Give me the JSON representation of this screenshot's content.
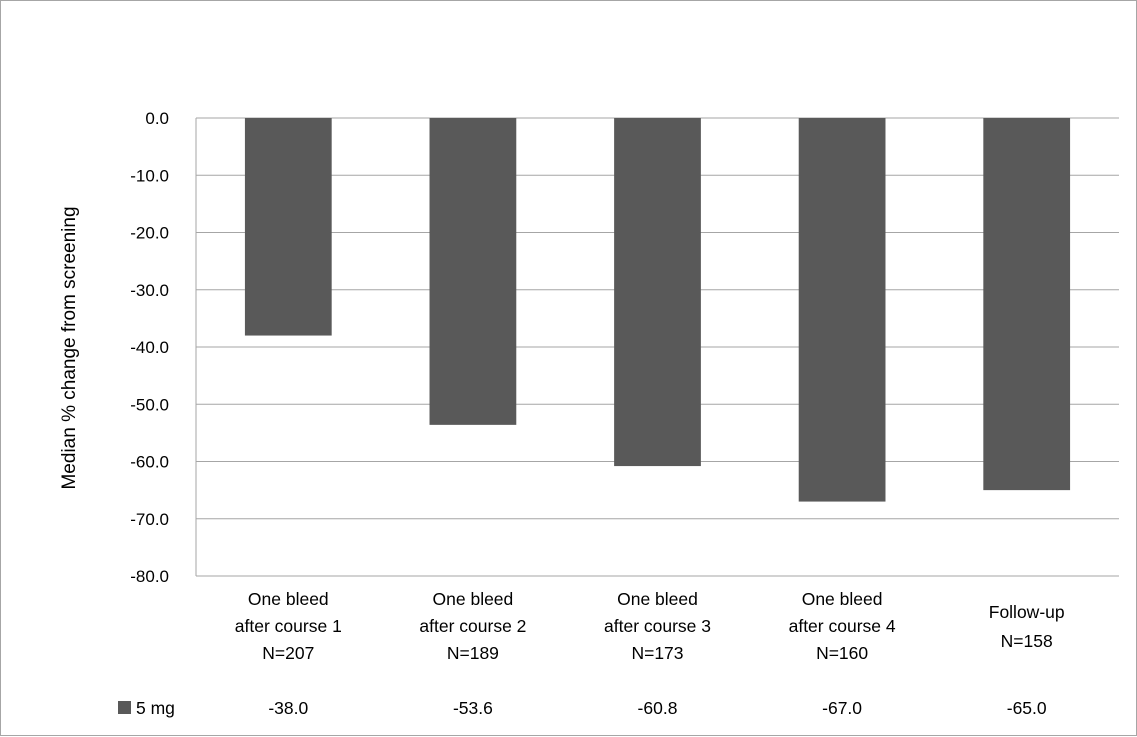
{
  "chart_data": {
    "type": "bar",
    "ylabel": "Median % change from screening",
    "ylim": [
      -80,
      0
    ],
    "yticks": [
      0,
      -10,
      -20,
      -30,
      -40,
      -50,
      -60,
      -70,
      -80
    ],
    "ytick_labels": [
      "0.0",
      "-10.0",
      "-20.0",
      "-30.0",
      "-40.0",
      "-50.0",
      "-60.0",
      "-70.0",
      "-80.0"
    ],
    "grid": true,
    "categories": [
      [
        "One bleed",
        "after course 1",
        "N=207"
      ],
      [
        "One bleed",
        "after course 2",
        "N=189"
      ],
      [
        "One bleed",
        "after course 3",
        "N=173"
      ],
      [
        "One bleed",
        "after course 4",
        "N=160"
      ],
      [
        "Follow-up",
        "N=158"
      ]
    ],
    "series": [
      {
        "name": "5 mg",
        "values": [
          -38.0,
          -53.6,
          -60.8,
          -67.0,
          -65.0
        ],
        "value_labels": [
          "-38.0",
          "-53.6",
          "-60.8",
          "-67.0",
          "-65.0"
        ],
        "color": "#595959"
      }
    ],
    "data_table": true
  }
}
